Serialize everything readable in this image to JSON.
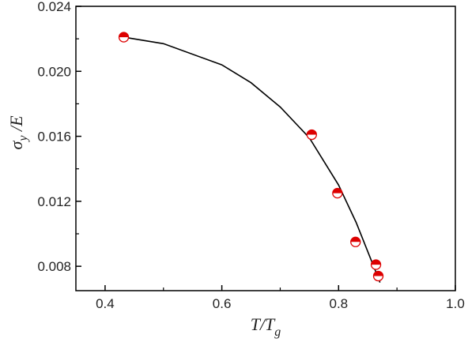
{
  "chart_data": {
    "type": "scatter",
    "title": "",
    "xlabel": "T/T",
    "xlabel_sub": "g",
    "ylabel_main": "σ",
    "ylabel_sub": "y",
    "ylabel_tail": " /E",
    "xlim": [
      0.35,
      1.0
    ],
    "ylim": [
      0.0065,
      0.024
    ],
    "xticks": [
      0.4,
      0.6,
      0.8,
      1.0
    ],
    "xtick_labels": [
      "0.4",
      "0.6",
      "0.8",
      "1.0"
    ],
    "yticks": [
      0.008,
      0.012,
      0.016,
      0.02,
      0.024
    ],
    "ytick_labels": [
      "0.008",
      "0.012",
      "0.016",
      "0.020",
      "0.024"
    ],
    "grid": false,
    "legend": "none",
    "series": [
      {
        "kind": "points",
        "color": "#dd0000",
        "marker": "half-filled-circle",
        "x": [
          0.432,
          0.754,
          0.798,
          0.829,
          0.864,
          0.868
        ],
        "y": [
          0.0221,
          0.0161,
          0.0125,
          0.0095,
          0.0081,
          0.0074
        ]
      },
      {
        "kind": "line",
        "color": "#000000",
        "x": [
          0.432,
          0.5,
          0.6,
          0.65,
          0.7,
          0.75,
          0.8,
          0.83,
          0.86,
          0.871
        ],
        "y": [
          0.0221,
          0.0217,
          0.0204,
          0.0193,
          0.0178,
          0.0159,
          0.013,
          0.0107,
          0.008,
          0.007
        ]
      }
    ]
  }
}
